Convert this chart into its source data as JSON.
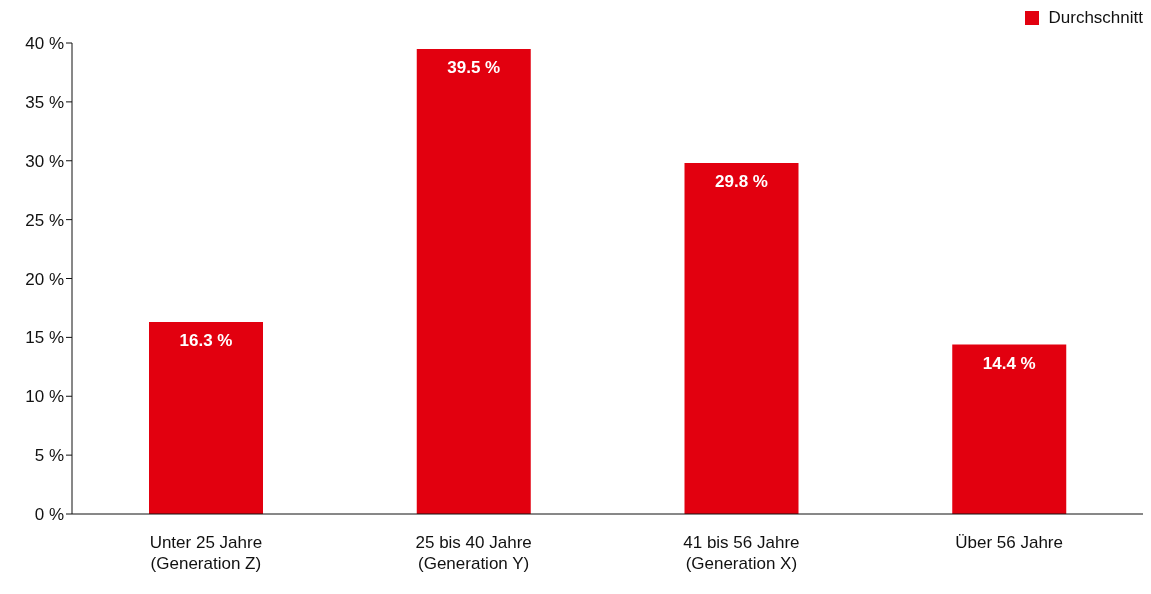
{
  "chart_data": {
    "type": "bar",
    "categories": [
      "Unter 25 Jahre\n(Generation Z)",
      "25 bis 40 Jahre\n(Generation Y)",
      "41 bis 56 Jahre\n(Generation X)",
      "Über 56 Jahre"
    ],
    "series": [
      {
        "name": "Durchschnitt",
        "color": "#e2000f",
        "values": [
          16.3,
          39.5,
          29.8,
          14.4
        ],
        "value_labels": [
          "16.3 %",
          "39.5 %",
          "29.8 %",
          "14.4 %"
        ]
      }
    ],
    "ylim": [
      0,
      40
    ],
    "yticks": [
      {
        "value": 0,
        "label": "0 %"
      },
      {
        "value": 5,
        "label": "5 %"
      },
      {
        "value": 10,
        "label": "10 %"
      },
      {
        "value": 15,
        "label": "15 %"
      },
      {
        "value": 20,
        "label": "20 %"
      },
      {
        "value": 25,
        "label": "25 %"
      },
      {
        "value": 30,
        "label": "30 %"
      },
      {
        "value": 35,
        "label": "35 %"
      },
      {
        "value": 40,
        "label": "40 %"
      }
    ],
    "grid": false,
    "legend": "top right"
  }
}
